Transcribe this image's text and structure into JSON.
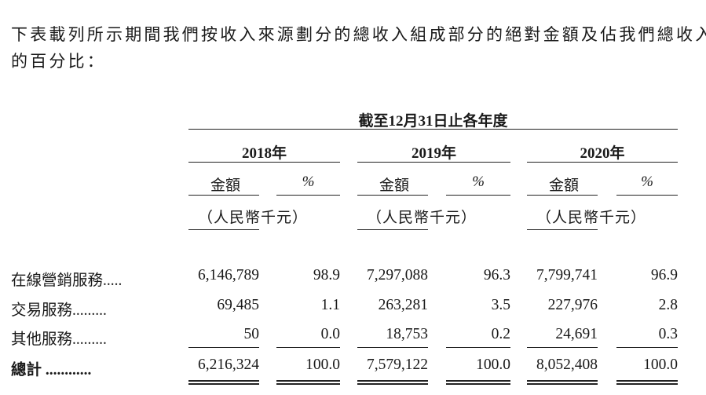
{
  "intro": {
    "line1": "下表載列所示期間我們按收入來源劃分的總收入組成部分的絕對金額及佔我們總收入",
    "line2": "的百分比："
  },
  "table": {
    "period_header": "截至12月31日止各年度",
    "years": [
      "2018年",
      "2019年",
      "2020年"
    ],
    "amount_label": "金額",
    "percent_label": "%",
    "unit_label": "（人民幣千元）",
    "rows": [
      {
        "label": "在線營銷服務.....",
        "values": [
          "6,146,789",
          "98.9",
          "7,297,088",
          "96.3",
          "7,799,741",
          "96.9"
        ]
      },
      {
        "label": "交易服務.........",
        "values": [
          "69,485",
          "1.1",
          "263,281",
          "3.5",
          "227,976",
          "2.8"
        ]
      },
      {
        "label": "其他服務.........",
        "values": [
          "50",
          "0.0",
          "18,753",
          "0.2",
          "24,691",
          "0.3"
        ]
      }
    ],
    "total": {
      "label": "總計 ............",
      "values": [
        "6,216,324",
        "100.0",
        "7,579,122",
        "100.0",
        "8,052,408",
        "100.0"
      ]
    }
  }
}
